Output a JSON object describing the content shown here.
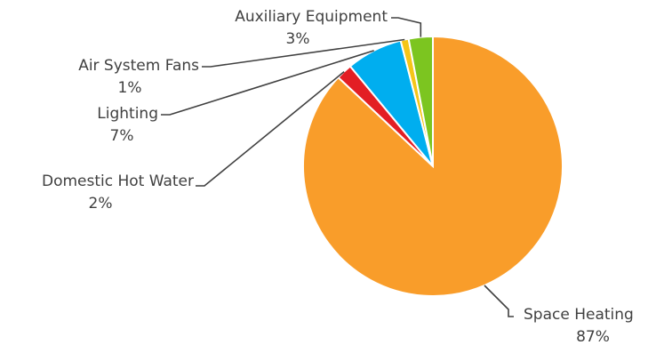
{
  "chart_data": {
    "type": "pie",
    "title": "",
    "categories": [
      "Space Heating",
      "Domestic Hot Water",
      "Lighting",
      "Air System Fans",
      "Auxiliary Equipment"
    ],
    "values": [
      87,
      2,
      7,
      1,
      3
    ],
    "labels": [
      "87%",
      "2%",
      "7%",
      "1%",
      "3%"
    ],
    "colors": [
      "#F99D2A",
      "#E31E24",
      "#00AEEF",
      "#F5C518",
      "#7CC520"
    ],
    "start_angle_deg": 0,
    "direction": "clockwise",
    "legend": "none",
    "data_labels": "outside-with-leader-lines"
  }
}
